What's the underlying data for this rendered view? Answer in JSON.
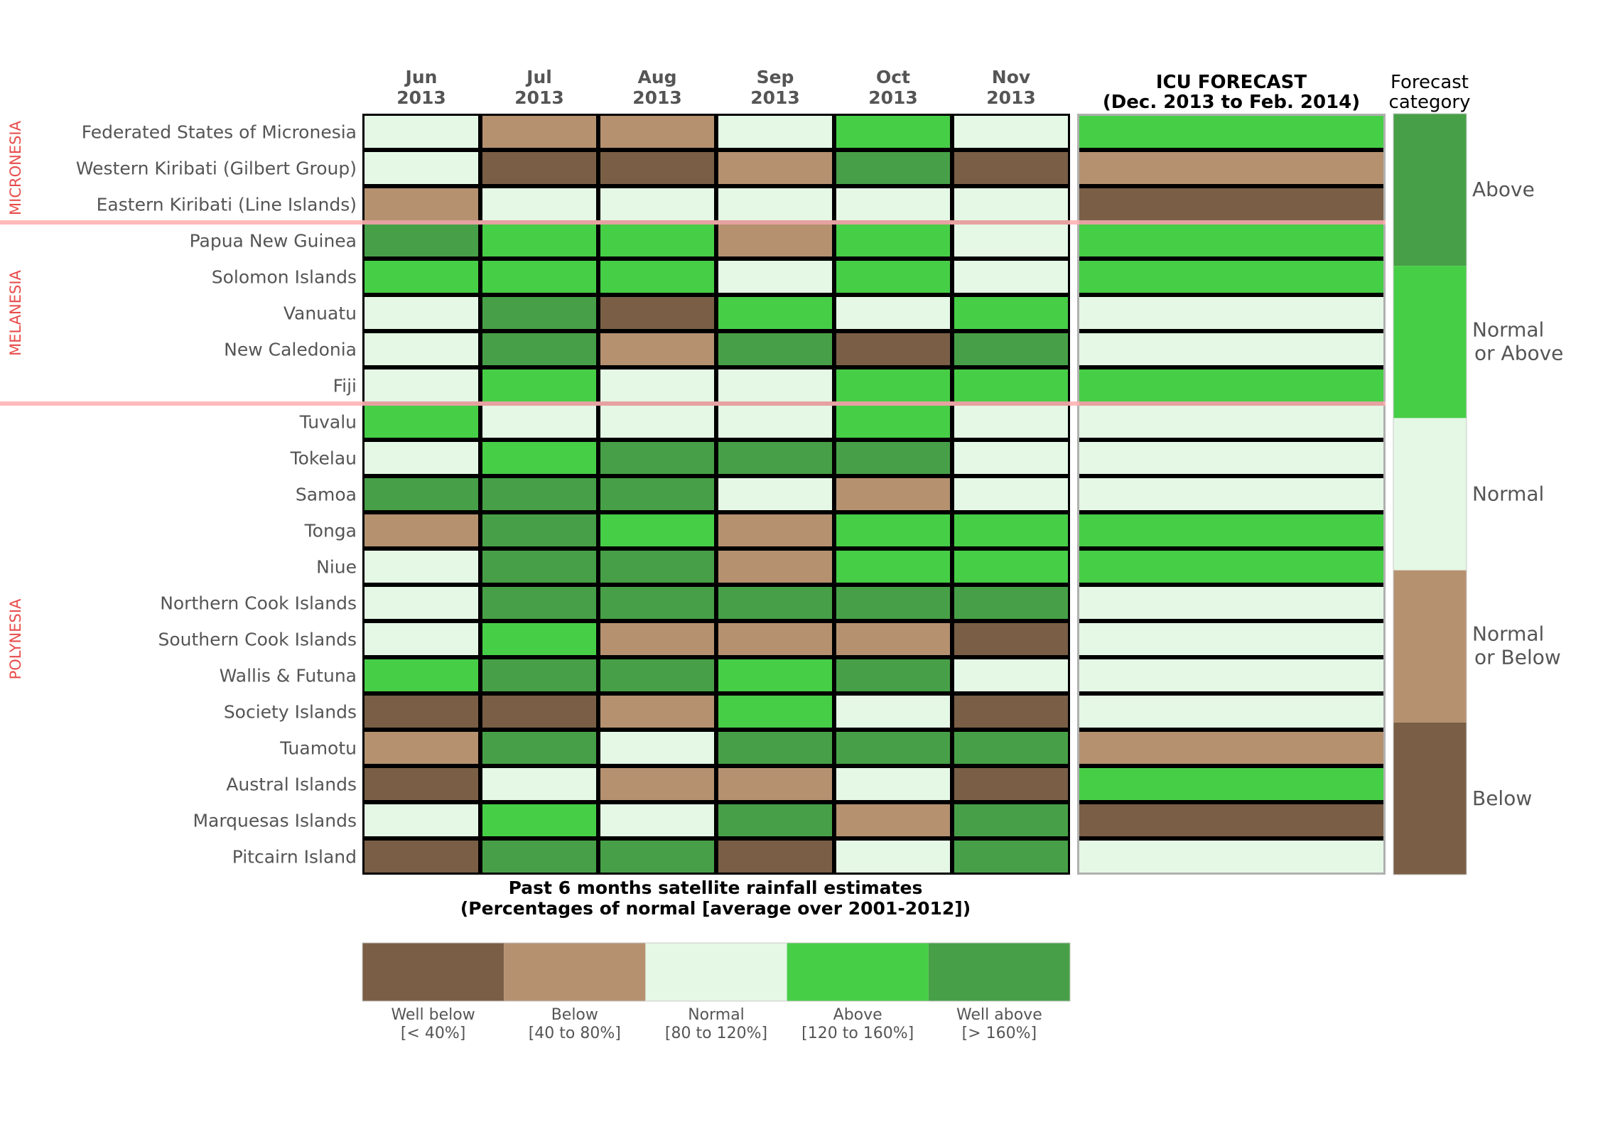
{
  "chart_data": {
    "type": "heatmap",
    "title": "",
    "months": [
      {
        "month": "Jun",
        "year": "2013"
      },
      {
        "month": "Jul",
        "year": "2013"
      },
      {
        "month": "Aug",
        "year": "2013"
      },
      {
        "month": "Sep",
        "year": "2013"
      },
      {
        "month": "Oct",
        "year": "2013"
      },
      {
        "month": "Nov",
        "year": "2013"
      }
    ],
    "forecast_header": {
      "line1": "ICU FORECAST",
      "line2": "(Dec. 2013 to Feb. 2014)"
    },
    "forecast_category_header": {
      "line1": "Forecast",
      "line2": "category"
    },
    "regions": [
      {
        "name": "MICRONESIA",
        "start": 0,
        "end": 2
      },
      {
        "name": "MELANESIA",
        "start": 3,
        "end": 7
      },
      {
        "name": "POLYNESIA",
        "start": 8,
        "end": 20
      }
    ],
    "countries": [
      "Federated States of Micronesia",
      "Western Kiribati (Gilbert Group)",
      "Eastern Kiribati (Line Islands)",
      "Papua New Guinea",
      "Solomon Islands",
      "Vanuatu",
      "New Caledonia",
      "Fiji",
      "Tuvalu",
      "Tokelau",
      "Samoa",
      "Tonga",
      "Niue",
      "Northern Cook Islands",
      "Southern Cook Islands",
      "Wallis & Futuna",
      "Society Islands",
      "Tuamotu",
      "Austral Islands",
      "Marquesas Islands",
      "Pitcairn Island"
    ],
    "past_categories": [
      {
        "label": "Well below",
        "range": "[< 40%]",
        "color": "#7a5f46"
      },
      {
        "label": "Below",
        "range": "[40 to 80%]",
        "color": "#b69170"
      },
      {
        "label": "Normal",
        "range": "[80 to 120%]",
        "color": "#e5f7e5"
      },
      {
        "label": "Above",
        "range": "[120 to 160%]",
        "color": "#47ce47"
      },
      {
        "label": "Well above",
        "range": "[> 160%]",
        "color": "#47a047"
      }
    ],
    "past_values": [
      [
        2,
        1,
        1,
        2,
        3,
        2
      ],
      [
        2,
        0,
        0,
        1,
        4,
        0
      ],
      [
        1,
        2,
        2,
        2,
        2,
        2
      ],
      [
        4,
        3,
        3,
        1,
        3,
        2
      ],
      [
        3,
        3,
        3,
        2,
        3,
        2
      ],
      [
        2,
        4,
        0,
        3,
        2,
        3
      ],
      [
        2,
        4,
        1,
        4,
        0,
        4
      ],
      [
        2,
        3,
        2,
        2,
        3,
        3
      ],
      [
        3,
        2,
        2,
        2,
        3,
        2
      ],
      [
        2,
        3,
        4,
        4,
        4,
        2
      ],
      [
        4,
        4,
        4,
        2,
        1,
        2
      ],
      [
        1,
        4,
        3,
        1,
        3,
        3
      ],
      [
        2,
        4,
        4,
        1,
        3,
        3
      ],
      [
        2,
        4,
        4,
        4,
        4,
        4
      ],
      [
        2,
        3,
        1,
        1,
        1,
        0
      ],
      [
        3,
        4,
        4,
        3,
        4,
        2
      ],
      [
        0,
        0,
        1,
        3,
        2,
        0
      ],
      [
        1,
        4,
        2,
        4,
        4,
        4
      ],
      [
        0,
        2,
        1,
        1,
        2,
        0
      ],
      [
        2,
        3,
        2,
        4,
        1,
        4
      ],
      [
        0,
        4,
        4,
        0,
        2,
        4
      ]
    ],
    "forecast_categories": [
      {
        "label": "Above",
        "color": "#47a047"
      },
      {
        "label": "Normal or Above",
        "line1": "Normal",
        "line2": "or Above",
        "color": "#47ce47"
      },
      {
        "label": "Normal",
        "color": "#e5f7e5"
      },
      {
        "label": "Normal or Below",
        "line1": "Normal",
        "line2": "or Below",
        "color": "#b69170"
      },
      {
        "label": "Below",
        "color": "#7a5f46"
      }
    ],
    "forecast_values": [
      1,
      3,
      4,
      1,
      1,
      2,
      2,
      1,
      2,
      2,
      2,
      1,
      1,
      2,
      2,
      2,
      2,
      3,
      1,
      4,
      2
    ],
    "legend_title": {
      "line1": "Past 6 months satellite rainfall estimates",
      "line2": "(Percentages of normal [average over 2001-2012])"
    },
    "colors": {
      "region_line": "#ffb3b3",
      "region_label": "#e84c4c",
      "text": "#555555",
      "grid": "#000000",
      "forecast_border": "#b0b0b0"
    }
  }
}
